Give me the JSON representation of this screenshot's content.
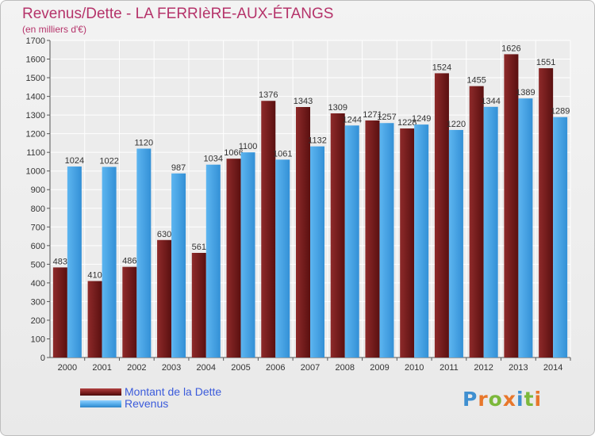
{
  "header": {
    "title": "Revenus/Dette - LA FERRIèRE-AUX-ÉTANGS",
    "subtitle": "(en milliers d'€)"
  },
  "chart_data": {
    "type": "bar",
    "title": "Revenus/Dette - LA FERRIèRE-AUX-ÉTANGS",
    "subtitle": "(en milliers d'€)",
    "categories": [
      "2000",
      "2001",
      "2002",
      "2003",
      "2004",
      "2005",
      "2006",
      "2007",
      "2008",
      "2009",
      "2010",
      "2011",
      "2012",
      "2013",
      "2014"
    ],
    "series": [
      {
        "name": "Montant de la Dette",
        "color": "#7a1c1c",
        "values": [
          483,
          410,
          486,
          630,
          561,
          1066,
          1376,
          1343,
          1309,
          1271,
          1228,
          1524,
          1455,
          1626,
          1551
        ]
      },
      {
        "name": "Revenus",
        "color": "#4da6e6",
        "values": [
          1024,
          1022,
          1120,
          987,
          1034,
          1100,
          1061,
          1132,
          1244,
          1257,
          1249,
          1220,
          1344,
          1389,
          1289
        ]
      }
    ],
    "value_labels": [
      [
        "483",
        "410",
        "486",
        "630",
        "561",
        "1066",
        "1376",
        "1343",
        "1309",
        "1271",
        "1228",
        "1524",
        "1455",
        "1626",
        "1551"
      ],
      [
        "1024",
        "1022",
        "1120",
        "987",
        "1034",
        "1100",
        "1061",
        "1132",
        "1244",
        "1257",
        "1249",
        "1220",
        "1344",
        "1389",
        "1289"
      ]
    ],
    "yticks": [
      0,
      100,
      200,
      300,
      400,
      500,
      600,
      700,
      800,
      900,
      1000,
      1100,
      1200,
      1300,
      1400,
      1500,
      1600,
      1700
    ],
    "ylim": [
      0,
      1700
    ],
    "grid": true,
    "legend_position": "bottom-left",
    "xlabel": "",
    "ylabel": ""
  },
  "legend": {
    "items": [
      {
        "label": "Montant de la Dette",
        "color": "#7a1c1c"
      },
      {
        "label": "Revenus",
        "color": "#4da6e6"
      }
    ]
  },
  "logo": {
    "letters": [
      "P",
      "r",
      "o",
      "x",
      "i",
      "t",
      "i"
    ],
    "colors": [
      "#3f8fd0",
      "#e8772b",
      "#7cb83b",
      "#e8772b",
      "#3f8fd0",
      "#7cb83b",
      "#e8772b"
    ]
  }
}
